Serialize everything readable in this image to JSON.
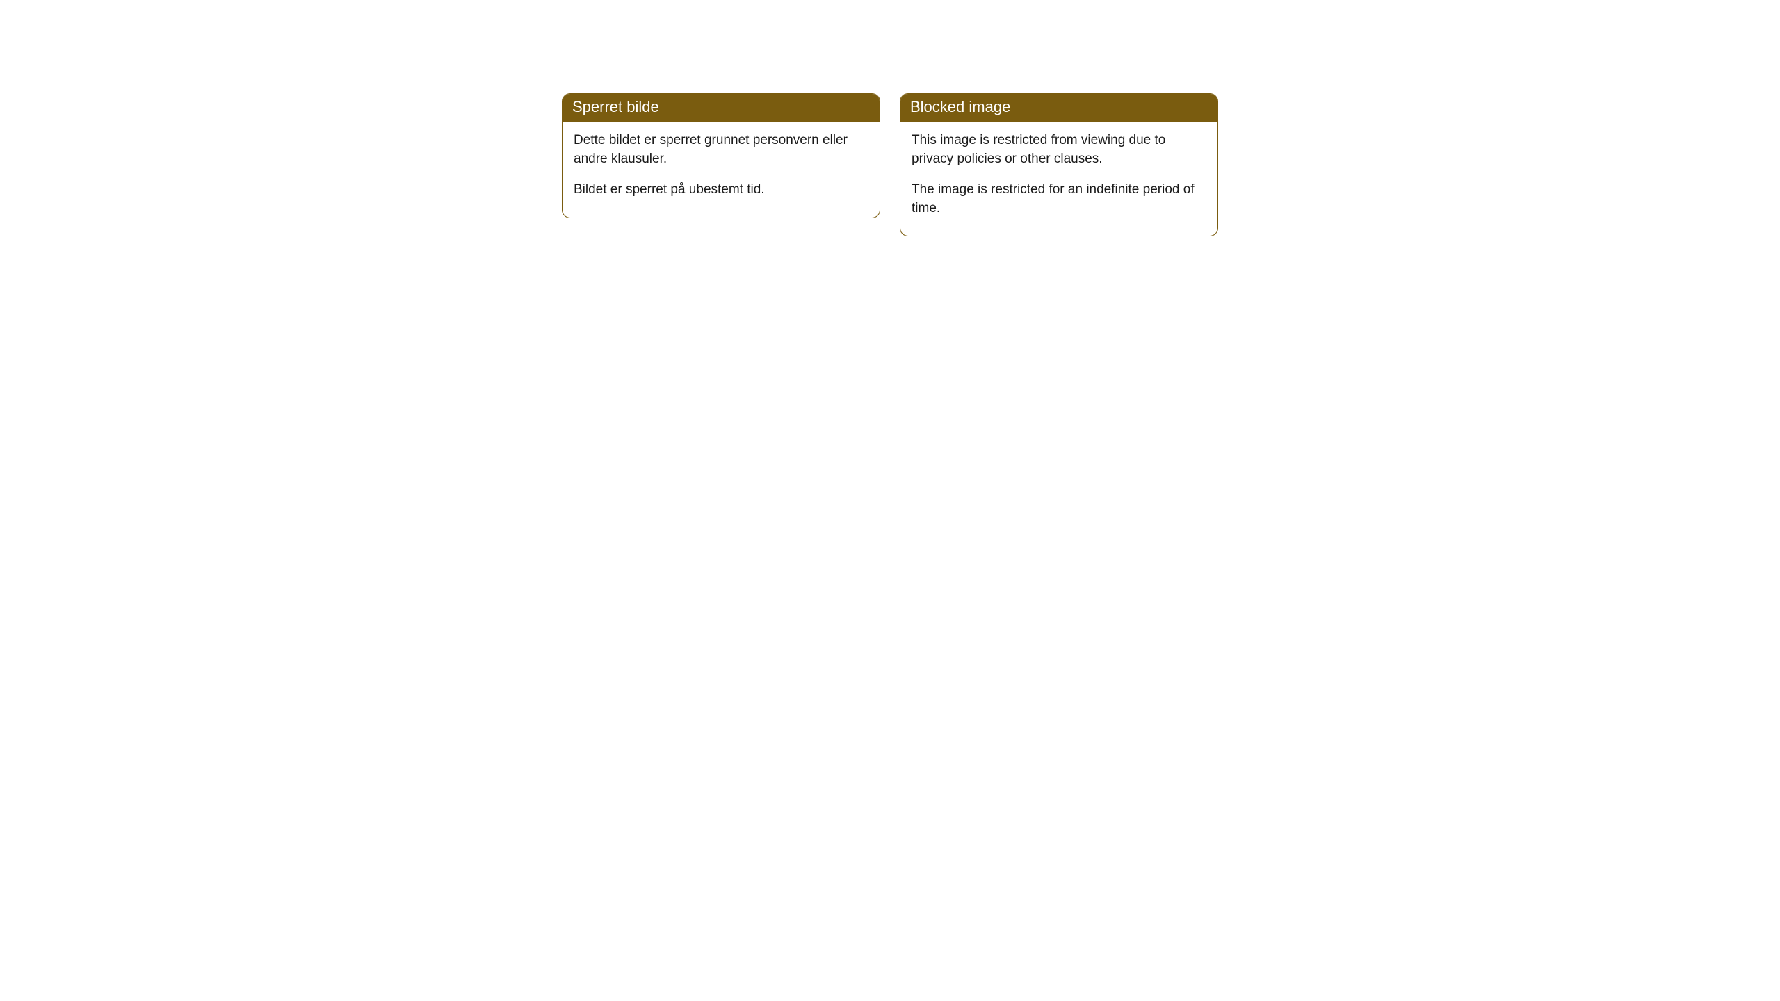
{
  "cards": [
    {
      "title": "Sperret bilde",
      "paragraph1": "Dette bildet er sperret grunnet personvern eller andre klausuler.",
      "paragraph2": "Bildet er sperret på ubestemt tid."
    },
    {
      "title": "Blocked image",
      "paragraph1": "This image is restricted from viewing due to privacy policies or other clauses.",
      "paragraph2": "The image is restricted for an indefinite period of time."
    }
  ],
  "style": {
    "header_bg_color": "#7a5c0f",
    "header_text_color": "#ffffff",
    "card_border_color": "#7a5c0f",
    "card_bg_color": "#ffffff",
    "body_text_color": "#1a1a1a",
    "page_bg_color": "#ffffff",
    "border_radius": 12,
    "header_fontsize": 22,
    "body_fontsize": 19
  }
}
